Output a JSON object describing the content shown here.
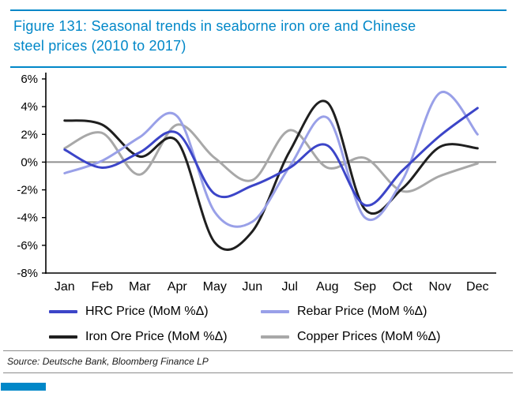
{
  "figure": {
    "title": "Figure 131: Seasonal trends in seaborne iron ore and Chinese steel prices (2010 to 2017)",
    "source": "Source: Deutsche Bank, Bloomberg Finance LP",
    "accent_color": "#0087C8",
    "rule_color": "#8C8C8C"
  },
  "chart_data": {
    "type": "line",
    "title": "Seasonal trends in seaborne iron ore and Chinese steel prices (2010 to 2017)",
    "x": [
      "Jan",
      "Feb",
      "Mar",
      "Apr",
      "May",
      "Jun",
      "Jul",
      "Aug",
      "Sep",
      "Oct",
      "Nov",
      "Dec"
    ],
    "xlabel": "",
    "ylabel": "",
    "ylim": [
      -8,
      6
    ],
    "yticks": [
      "6%",
      "4%",
      "2%",
      "0%",
      "-2%",
      "-4%",
      "-6%",
      "-8%"
    ],
    "ytick_values": [
      6,
      4,
      2,
      0,
      -2,
      -4,
      -6,
      -8
    ],
    "grid": false,
    "zero_line": true,
    "zero_line_color": "#8F8F8F",
    "axis_color": "#000000",
    "legend_position": "bottom",
    "line_style": "smooth",
    "series": [
      {
        "name": "HRC Price (MoM %Δ)",
        "color": "#3C45C8",
        "values": [
          0.9,
          -0.4,
          0.7,
          2.1,
          -2.3,
          -1.7,
          -0.4,
          1.2,
          -3.1,
          -0.6,
          1.9,
          3.9
        ]
      },
      {
        "name": "Rebar Price (MoM %Δ)",
        "color": "#99A0E8",
        "values": [
          -0.8,
          0.1,
          1.8,
          3.3,
          -3.6,
          -4.3,
          -0.3,
          3.2,
          -4.0,
          -1.3,
          5.0,
          2.0
        ]
      },
      {
        "name": "Iron Ore Price (MoM %Δ)",
        "color": "#1F1F1F",
        "values": [
          3.0,
          2.7,
          0.4,
          1.5,
          -5.8,
          -5.0,
          0.8,
          4.3,
          -3.4,
          -1.9,
          1.1,
          1.0
        ]
      },
      {
        "name": "Copper Prices (MoM %Δ)",
        "color": "#A8A8A8",
        "values": [
          1.0,
          2.1,
          -0.9,
          2.7,
          0.3,
          -1.3,
          2.3,
          -0.4,
          0.3,
          -2.1,
          -1.0,
          -0.1
        ]
      }
    ]
  }
}
